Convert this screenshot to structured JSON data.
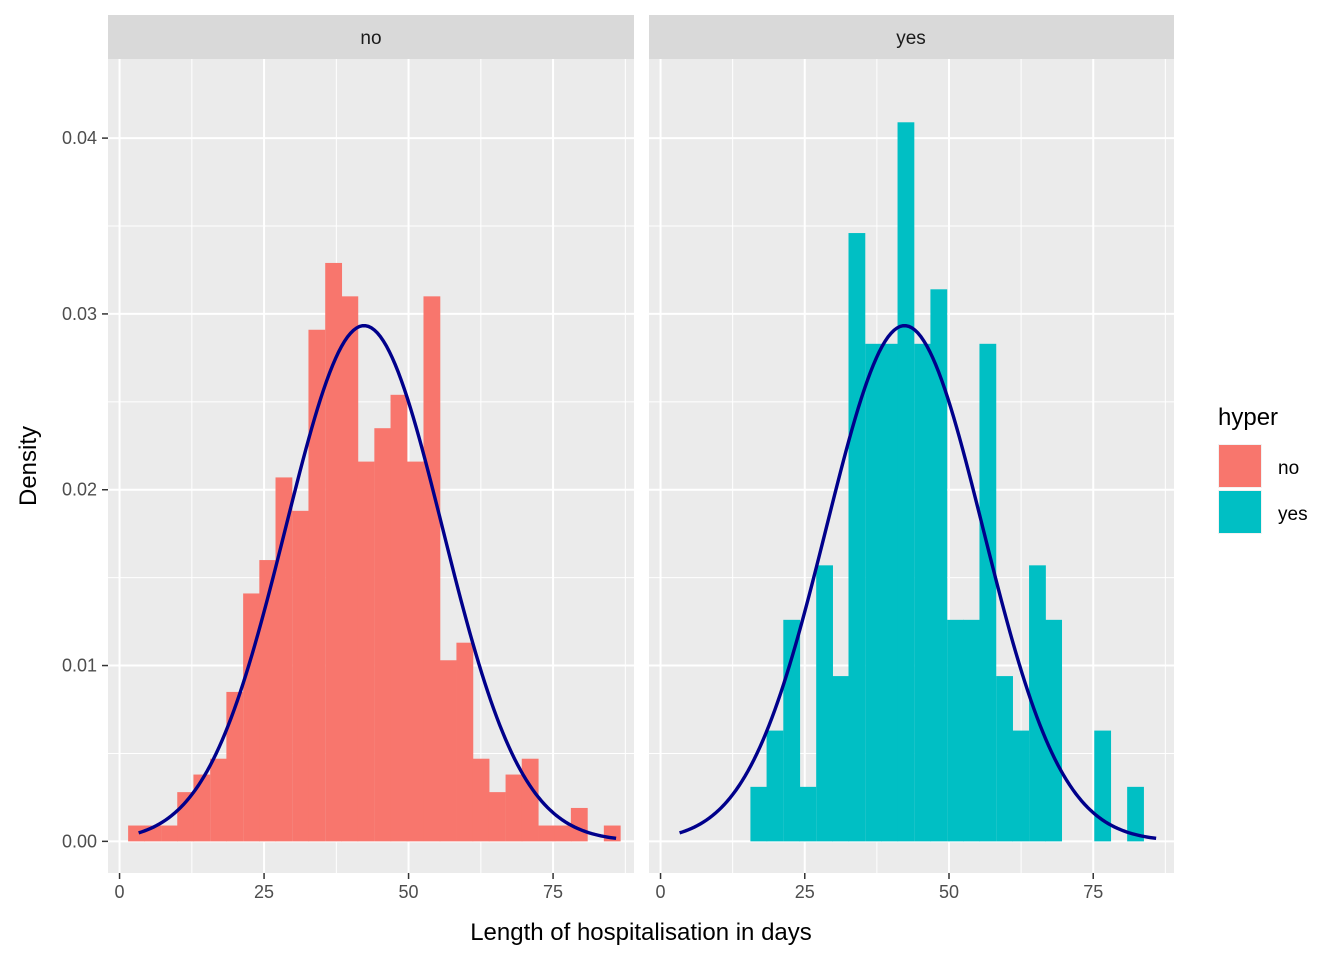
{
  "chart_data": {
    "type": "bar",
    "kind": "faceted-histogram-with-normal-density",
    "xlabel": "Length of hospitalisation in days",
    "ylabel": "Density",
    "xlim": [
      -2,
      89
    ],
    "ylim": [
      -0.0018,
      0.0445
    ],
    "x_ticks": [
      0,
      25,
      50,
      75
    ],
    "y_ticks": [
      0.0,
      0.01,
      0.02,
      0.03,
      0.04
    ],
    "x_tick_labels": [
      "0",
      "25",
      "50",
      "75"
    ],
    "y_tick_labels": [
      "0.00",
      "0.01",
      "0.02",
      "0.03",
      "0.04"
    ],
    "grid": true,
    "bin_width": 2.84,
    "legend": {
      "title": "hyper",
      "position": "right",
      "items": [
        {
          "label": "no",
          "color": "#F8766D"
        },
        {
          "label": "yes",
          "color": "#00BFC4"
        }
      ]
    },
    "curve_color": "#00008B",
    "panels": [
      {
        "strip": "no",
        "fill": "#F8766D",
        "bins": [
          {
            "x": 2.9,
            "y": 0.0009
          },
          {
            "x": 5.7,
            "y": 0.0009
          },
          {
            "x": 8.6,
            "y": 0.0009
          },
          {
            "x": 11.4,
            "y": 0.0028
          },
          {
            "x": 14.2,
            "y": 0.0038
          },
          {
            "x": 17.1,
            "y": 0.0047
          },
          {
            "x": 19.9,
            "y": 0.0085
          },
          {
            "x": 22.8,
            "y": 0.0141
          },
          {
            "x": 25.6,
            "y": 0.016
          },
          {
            "x": 28.4,
            "y": 0.0207
          },
          {
            "x": 31.3,
            "y": 0.0188
          },
          {
            "x": 34.1,
            "y": 0.0291
          },
          {
            "x": 37.0,
            "y": 0.0329
          },
          {
            "x": 39.8,
            "y": 0.031
          },
          {
            "x": 42.6,
            "y": 0.0216
          },
          {
            "x": 45.5,
            "y": 0.0235
          },
          {
            "x": 48.3,
            "y": 0.0254
          },
          {
            "x": 51.1,
            "y": 0.0216
          },
          {
            "x": 54.0,
            "y": 0.031
          },
          {
            "x": 56.8,
            "y": 0.0103
          },
          {
            "x": 59.7,
            "y": 0.0113
          },
          {
            "x": 62.5,
            "y": 0.0047
          },
          {
            "x": 65.3,
            "y": 0.0028
          },
          {
            "x": 68.2,
            "y": 0.0038
          },
          {
            "x": 71.0,
            "y": 0.0047
          },
          {
            "x": 73.9,
            "y": 0.0009
          },
          {
            "x": 76.7,
            "y": 0.0009
          },
          {
            "x": 79.5,
            "y": 0.0019
          },
          {
            "x": 82.4,
            "y": 0.0
          },
          {
            "x": 85.2,
            "y": 0.0009
          }
        ],
        "normal_curve": {
          "mean": 42.3,
          "sd": 13.6,
          "from": 3.3,
          "to": 85.9
        }
      },
      {
        "strip": "yes",
        "fill": "#00BFC4",
        "bins": [
          {
            "x": 17.0,
            "y": 0.0031
          },
          {
            "x": 19.8,
            "y": 0.0063
          },
          {
            "x": 22.7,
            "y": 0.0126
          },
          {
            "x": 25.5,
            "y": 0.0031
          },
          {
            "x": 28.4,
            "y": 0.0157
          },
          {
            "x": 31.2,
            "y": 0.0094
          },
          {
            "x": 34.0,
            "y": 0.0346
          },
          {
            "x": 36.9,
            "y": 0.0283
          },
          {
            "x": 39.7,
            "y": 0.0283
          },
          {
            "x": 42.5,
            "y": 0.0409
          },
          {
            "x": 45.4,
            "y": 0.0283
          },
          {
            "x": 48.2,
            "y": 0.0314
          },
          {
            "x": 51.1,
            "y": 0.0126
          },
          {
            "x": 53.9,
            "y": 0.0126
          },
          {
            "x": 56.7,
            "y": 0.0283
          },
          {
            "x": 59.6,
            "y": 0.0094
          },
          {
            "x": 62.4,
            "y": 0.0063
          },
          {
            "x": 65.3,
            "y": 0.0157
          },
          {
            "x": 68.1,
            "y": 0.0126
          },
          {
            "x": 70.9,
            "y": 0.0
          },
          {
            "x": 73.8,
            "y": 0.0
          },
          {
            "x": 76.6,
            "y": 0.0063
          },
          {
            "x": 79.5,
            "y": 0.0
          },
          {
            "x": 82.3,
            "y": 0.0031
          }
        ],
        "normal_curve": {
          "mean": 42.3,
          "sd": 13.6,
          "from": 3.3,
          "to": 85.9
        }
      }
    ]
  }
}
